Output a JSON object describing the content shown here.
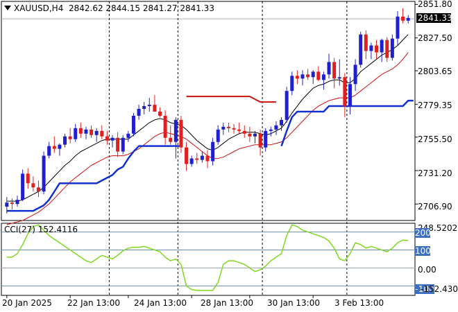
{
  "header": {
    "symbol_tf": "XAUUSD,H4",
    "open": "2842.62",
    "high": "2844.15",
    "low": "2841.27",
    "close": "2841.33"
  },
  "current_price_label": "2841.33",
  "cci": {
    "label": "CCI(27) 152.4116",
    "max_label": "248.5202",
    "min_label": "-152.4308",
    "level_200": "200",
    "level_100": "100",
    "level_0": "0.00",
    "level_m100": "-100"
  },
  "colors": {
    "bull": "#1f1fd0",
    "bear": "#e02020",
    "ma_fast": "#000000",
    "ma_slow": "#d01010",
    "stop_up": "#1030d0",
    "stop_down": "#cc1010",
    "cci_line": "#7dd820",
    "grid_sep": "#000000"
  },
  "chart_data": [
    {
      "type": "candlestick",
      "title": "XAUUSD,H4",
      "y_ticks": [
        "2851.80",
        "2827.50",
        "2803.65",
        "2779.35",
        "2755.50",
        "2731.20",
        "2706.90"
      ],
      "x_ticks": [
        "20 Jan 2025",
        "22 Jan 13:00",
        "24 Jan 13:00",
        "28 Jan 13:00",
        "30 Jan 13:00",
        "3 Feb 13:00"
      ],
      "ylim": [
        2695,
        2854
      ],
      "ohlc": [
        [
          2705,
          2712,
          2700,
          2708
        ],
        [
          2708,
          2711,
          2703,
          2707
        ],
        [
          2707,
          2713,
          2705,
          2710
        ],
        [
          2710,
          2732,
          2709,
          2729
        ],
        [
          2729,
          2733,
          2718,
          2722
        ],
        [
          2722,
          2727,
          2716,
          2719
        ],
        [
          2719,
          2724,
          2712,
          2716
        ],
        [
          2716,
          2745,
          2714,
          2742
        ],
        [
          2742,
          2752,
          2740,
          2749
        ],
        [
          2749,
          2756,
          2744,
          2747
        ],
        [
          2747,
          2751,
          2742,
          2750
        ],
        [
          2750,
          2758,
          2748,
          2756
        ],
        [
          2756,
          2762,
          2751,
          2754
        ],
        [
          2754,
          2765,
          2752,
          2762
        ],
        [
          2762,
          2766,
          2755,
          2758
        ],
        [
          2758,
          2763,
          2754,
          2761
        ],
        [
          2761,
          2764,
          2755,
          2757
        ],
        [
          2757,
          2762,
          2752,
          2760
        ],
        [
          2760,
          2764,
          2754,
          2756
        ],
        [
          2756,
          2760,
          2750,
          2753
        ],
        [
          2753,
          2757,
          2748,
          2755
        ],
        [
          2755,
          2759,
          2741,
          2745
        ],
        [
          2745,
          2757,
          2743,
          2755
        ],
        [
          2755,
          2760,
          2752,
          2758
        ],
        [
          2758,
          2773,
          2756,
          2771
        ],
        [
          2771,
          2779,
          2768,
          2776
        ],
        [
          2776,
          2781,
          2772,
          2778
        ],
        [
          2778,
          2784,
          2774,
          2779
        ],
        [
          2779,
          2786,
          2775,
          2774
        ],
        [
          2774,
          2777,
          2770,
          2771
        ],
        [
          2771,
          2775,
          2750,
          2755
        ],
        [
          2755,
          2764,
          2750,
          2752
        ],
        [
          2752,
          2770,
          2740,
          2768
        ],
        [
          2768,
          2771,
          2744,
          2748
        ],
        [
          2748,
          2752,
          2731,
          2736
        ],
        [
          2736,
          2742,
          2734,
          2740
        ],
        [
          2740,
          2744,
          2736,
          2739
        ],
        [
          2739,
          2745,
          2737,
          2742
        ],
        [
          2742,
          2746,
          2733,
          2738
        ],
        [
          2738,
          2755,
          2735,
          2752
        ],
        [
          2752,
          2764,
          2750,
          2761
        ],
        [
          2761,
          2766,
          2757,
          2763
        ],
        [
          2763,
          2766,
          2759,
          2762
        ],
        [
          2762,
          2765,
          2758,
          2761
        ],
        [
          2761,
          2766,
          2758,
          2760
        ],
        [
          2760,
          2764,
          2755,
          2758
        ],
        [
          2758,
          2763,
          2752,
          2756
        ],
        [
          2756,
          2760,
          2751,
          2758
        ],
        [
          2758,
          2761,
          2742,
          2748
        ],
        [
          2748,
          2762,
          2745,
          2760
        ],
        [
          2760,
          2763,
          2756,
          2761
        ],
        [
          2761,
          2767,
          2757,
          2764
        ],
        [
          2764,
          2770,
          2760,
          2768
        ],
        [
          2768,
          2792,
          2766,
          2789
        ],
        [
          2789,
          2803,
          2786,
          2800
        ],
        [
          2800,
          2804,
          2794,
          2798
        ],
        [
          2798,
          2804,
          2793,
          2801
        ],
        [
          2801,
          2805,
          2797,
          2799
        ],
        [
          2799,
          2804,
          2794,
          2803
        ],
        [
          2803,
          2807,
          2796,
          2797
        ],
        [
          2797,
          2803,
          2790,
          2801
        ],
        [
          2801,
          2816,
          2798,
          2810
        ],
        [
          2810,
          2813,
          2791,
          2798
        ],
        [
          2798,
          2812,
          2793,
          2799
        ],
        [
          2799,
          2802,
          2770,
          2778
        ],
        [
          2778,
          2799,
          2772,
          2794
        ],
        [
          2794,
          2812,
          2789,
          2808
        ],
        [
          2808,
          2832,
          2806,
          2830
        ],
        [
          2830,
          2833,
          2812,
          2818
        ],
        [
          2818,
          2824,
          2812,
          2822
        ],
        [
          2822,
          2826,
          2812,
          2817
        ],
        [
          2817,
          2827,
          2810,
          2826
        ],
        [
          2826,
          2828,
          2810,
          2813
        ],
        [
          2813,
          2830,
          2811,
          2827
        ],
        [
          2827,
          2847,
          2822,
          2843
        ],
        [
          2843,
          2849,
          2838,
          2840
        ],
        [
          2840,
          2844,
          2838,
          2842
        ]
      ],
      "ma_fast": [
        2709,
        2709,
        2709,
        2710,
        2712,
        2714,
        2716,
        2719,
        2723,
        2727,
        2731,
        2735,
        2738,
        2742,
        2745,
        2747,
        2749,
        2751,
        2753,
        2754,
        2754,
        2754,
        2754,
        2754,
        2757,
        2760,
        2763,
        2766,
        2768,
        2769,
        2768,
        2766,
        2765,
        2764,
        2761,
        2757,
        2753,
        2750,
        2747,
        2746,
        2748,
        2751,
        2754,
        2756,
        2758,
        2759,
        2759,
        2759,
        2758,
        2757,
        2758,
        2760,
        2762,
        2767,
        2773,
        2778,
        2783,
        2787,
        2791,
        2793,
        2794,
        2796,
        2797,
        2797,
        2795,
        2795,
        2798,
        2803,
        2806,
        2809,
        2812,
        2815,
        2817,
        2819,
        2822,
        2826,
        2830
      ],
      "ma_slow": [
        2692,
        2693,
        2694,
        2695,
        2697,
        2699,
        2701,
        2704,
        2707,
        2711,
        2715,
        2719,
        2723,
        2726,
        2729,
        2732,
        2735,
        2737,
        2739,
        2741,
        2742,
        2742,
        2742,
        2743,
        2745,
        2747,
        2750,
        2753,
        2756,
        2758,
        2759,
        2758,
        2757,
        2756,
        2754,
        2751,
        2748,
        2745,
        2742,
        2740,
        2740,
        2741,
        2743,
        2745,
        2747,
        2748,
        2749,
        2750,
        2750,
        2750,
        2750,
        2751,
        2752,
        2755,
        2759,
        2763,
        2767,
        2771,
        2775,
        2778,
        2780,
        2782,
        2783,
        2784,
        2784,
        2784,
        2786,
        2789,
        2792,
        2795,
        2798,
        2801,
        2803,
        2805,
        2808,
        2812,
        2817
      ],
      "stop_blue": [
        [
          0,
          2702
        ],
        [
          5,
          2702
        ],
        [
          6,
          2704
        ],
        [
          7,
          2706
        ],
        [
          8,
          2710
        ],
        [
          9,
          2716
        ],
        [
          10,
          2722
        ],
        [
          11,
          2722
        ],
        [
          17,
          2722
        ],
        [
          18,
          2724
        ],
        [
          19,
          2726
        ],
        [
          20,
          2728
        ],
        [
          21,
          2732
        ],
        [
          22,
          2734
        ],
        [
          23,
          2740
        ],
        [
          24,
          2745
        ],
        [
          25,
          2749
        ],
        [
          26,
          2749
        ],
        [
          32,
          2749
        ],
        [
          33,
          2749
        ]
      ],
      "stop_blue_2": [
        [
          52,
          2749
        ],
        [
          53,
          2760
        ],
        [
          54,
          2770
        ],
        [
          55,
          2774
        ],
        [
          60,
          2774
        ],
        [
          61,
          2778
        ],
        [
          62,
          2778
        ],
        [
          63,
          2778
        ],
        [
          64,
          2778
        ],
        [
          65,
          2778
        ],
        [
          66,
          2778
        ],
        [
          67,
          2778
        ],
        [
          75,
          2778
        ],
        [
          76,
          2782
        ],
        [
          77,
          2782
        ]
      ],
      "stop_red": [
        [
          34,
          2785
        ],
        [
          46,
          2785
        ],
        [
          47,
          2783
        ],
        [
          48,
          2781
        ],
        [
          51,
          2781
        ]
      ]
    },
    {
      "type": "line",
      "title": "CCI(27) 152.4116",
      "ylim": [
        -152.4308,
        248.5202
      ],
      "levels": [
        200,
        100,
        0,
        -100
      ],
      "values": [
        60,
        60,
        80,
        130,
        190,
        230,
        240,
        210,
        180,
        160,
        140,
        120,
        100,
        80,
        60,
        40,
        30,
        50,
        70,
        60,
        50,
        70,
        95,
        110,
        115,
        115,
        120,
        110,
        100,
        90,
        60,
        40,
        50,
        20,
        -100,
        -120,
        -125,
        -125,
        -125,
        -125,
        -80,
        20,
        40,
        40,
        30,
        20,
        0,
        -20,
        -10,
        10,
        40,
        60,
        80,
        180,
        240,
        230,
        210,
        200,
        190,
        180,
        170,
        150,
        110,
        50,
        40,
        80,
        140,
        130,
        110,
        120,
        110,
        100,
        90,
        110,
        140,
        155,
        152
      ]
    }
  ]
}
